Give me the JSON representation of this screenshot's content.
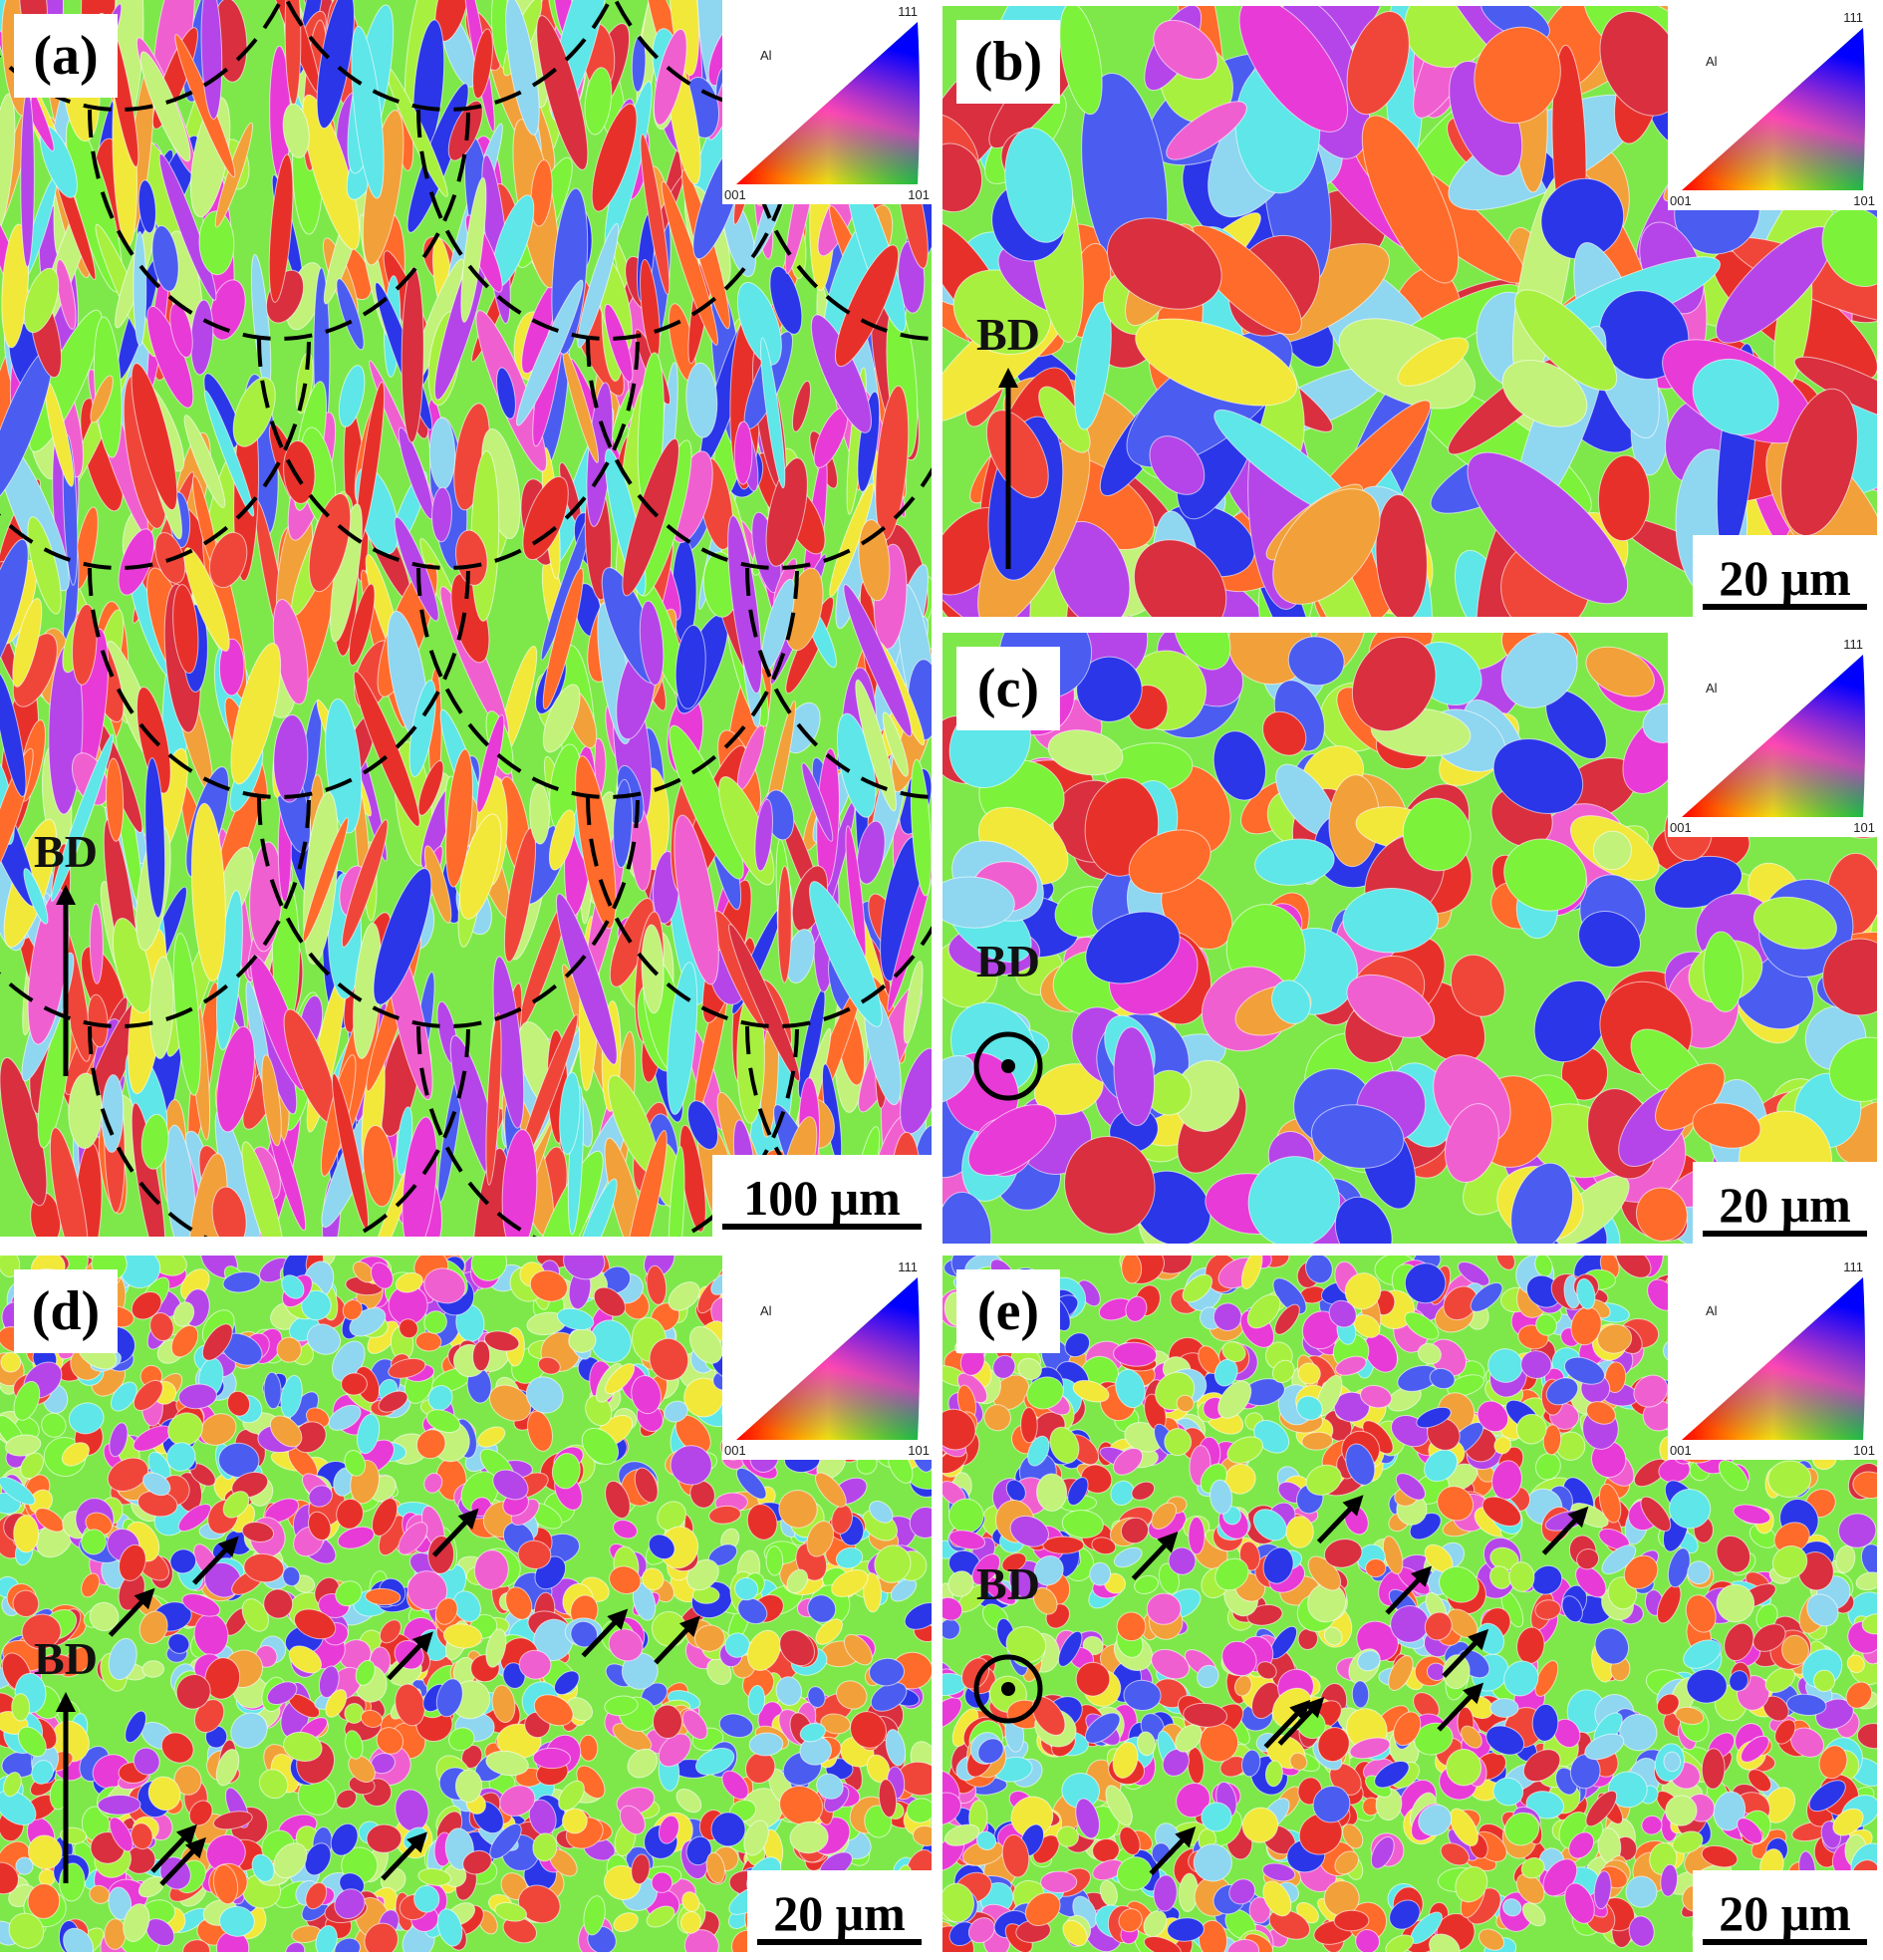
{
  "panels": [
    {
      "label": "(a)",
      "scale_bar": "100 μm",
      "direction": "BD",
      "legend": {
        "phase": "Al",
        "top": "111",
        "left": "001",
        "right": "101"
      }
    },
    {
      "label": "(b)",
      "scale_bar": "20 μm",
      "direction": "BD",
      "legend": {
        "phase": "Al",
        "top": "111",
        "left": "001",
        "right": "101"
      }
    },
    {
      "label": "(c)",
      "scale_bar": "20 μm",
      "direction": "BD",
      "legend": {
        "phase": "Al",
        "top": "111",
        "left": "001",
        "right": "101"
      }
    },
    {
      "label": "(d)",
      "scale_bar": "20 μm",
      "direction": "BD",
      "legend": {
        "phase": "Al",
        "top": "111",
        "left": "001",
        "right": "101"
      }
    },
    {
      "label": "(e)",
      "scale_bar": "20 μm",
      "direction": "BD",
      "legend": {
        "phase": "Al",
        "top": "111",
        "left": "001",
        "right": "101"
      }
    }
  ]
}
